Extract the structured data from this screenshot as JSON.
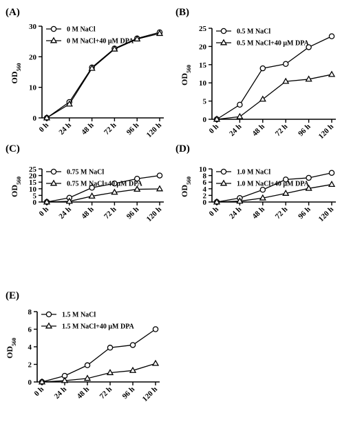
{
  "chart_data": [
    {
      "type": "line",
      "panel_label": "(A)",
      "ylabel": "OD",
      "ylabel_sub": "560",
      "categories": [
        "0 h",
        "24 h",
        "48 h",
        "72 h",
        "96 h",
        "120 h"
      ],
      "ylim": [
        0,
        30
      ],
      "yticks": [
        0,
        10,
        20,
        30
      ],
      "legend_position": "top-left",
      "grid": false,
      "series": [
        {
          "name": "0 M NaCl",
          "marker": "circle",
          "values": [
            0,
            5.2,
            16.5,
            22.7,
            26,
            28
          ]
        },
        {
          "name": "0 M NaCl+40 μM DPA",
          "marker": "triangle",
          "values": [
            0,
            4.5,
            16.2,
            22.5,
            25.8,
            27.6
          ]
        }
      ]
    },
    {
      "type": "line",
      "panel_label": "(B)",
      "ylabel": "OD",
      "ylabel_sub": "560",
      "categories": [
        "0 h",
        "24 h",
        "48 h",
        "72 h",
        "96 h",
        "120 h"
      ],
      "ylim": [
        0,
        25
      ],
      "yticks": [
        0,
        5,
        10,
        15,
        20,
        25
      ],
      "legend_position": "top-left",
      "grid": false,
      "series": [
        {
          "name": "0.5 M NaCl",
          "marker": "circle",
          "values": [
            0,
            4,
            14,
            15.2,
            19.8,
            22.8
          ]
        },
        {
          "name": "0.5 M NaCl+40 μM DPA",
          "marker": "triangle",
          "values": [
            0,
            0.7,
            5.5,
            10.4,
            11,
            12.3
          ]
        }
      ]
    },
    {
      "type": "line",
      "panel_label": "(C)",
      "ylabel": "OD",
      "ylabel_sub": "560",
      "categories": [
        "0 h",
        "24 h",
        "48 h",
        "72 h",
        "96 h",
        "120 h"
      ],
      "ylim": [
        0,
        25
      ],
      "yticks": [
        0,
        5,
        10,
        15,
        20,
        25
      ],
      "legend_position": "top-left",
      "grid": false,
      "series": [
        {
          "name": "0.75 M NaCl",
          "marker": "circle",
          "values": [
            0,
            3.2,
            10.8,
            14,
            17.6,
            20
          ]
        },
        {
          "name": "0.75 M NaCl+40 μM DPA",
          "marker": "triangle",
          "values": [
            0,
            0.5,
            4.4,
            7.3,
            9.6,
            9.9
          ]
        }
      ]
    },
    {
      "type": "line",
      "panel_label": "(D)",
      "ylabel": "OD",
      "ylabel_sub": "560",
      "categories": [
        "0 h",
        "24 h",
        "48 h",
        "72 h",
        "96 h",
        "120 h"
      ],
      "ylim": [
        0,
        10
      ],
      "yticks": [
        0,
        2,
        4,
        6,
        8,
        10
      ],
      "legend_position": "top-left",
      "grid": false,
      "series": [
        {
          "name": "1.0 M NaCl",
          "marker": "circle",
          "values": [
            0,
            1.2,
            3.7,
            6.8,
            7.3,
            8.8
          ]
        },
        {
          "name": "1.0 M NaCl+40 μM DPA",
          "marker": "triangle",
          "values": [
            0,
            0.25,
            1.2,
            2.6,
            4.1,
            5.3
          ]
        }
      ]
    },
    {
      "type": "line",
      "panel_label": "(E)",
      "ylabel": "OD",
      "ylabel_sub": "560",
      "categories": [
        "0 h",
        "24 h",
        "48 h",
        "72 h",
        "96 h",
        "120 h"
      ],
      "ylim": [
        0,
        8
      ],
      "yticks": [
        0,
        2,
        4,
        6,
        8
      ],
      "legend_position": "top-left",
      "grid": false,
      "series": [
        {
          "name": "1.5 M NaCl",
          "marker": "circle",
          "values": [
            0,
            0.7,
            1.9,
            3.9,
            4.2,
            6
          ]
        },
        {
          "name": "1.5 M NaCl+40 μM DPA",
          "marker": "triangle",
          "values": [
            0,
            0.15,
            0.4,
            1.05,
            1.3,
            2.1
          ]
        }
      ]
    }
  ]
}
